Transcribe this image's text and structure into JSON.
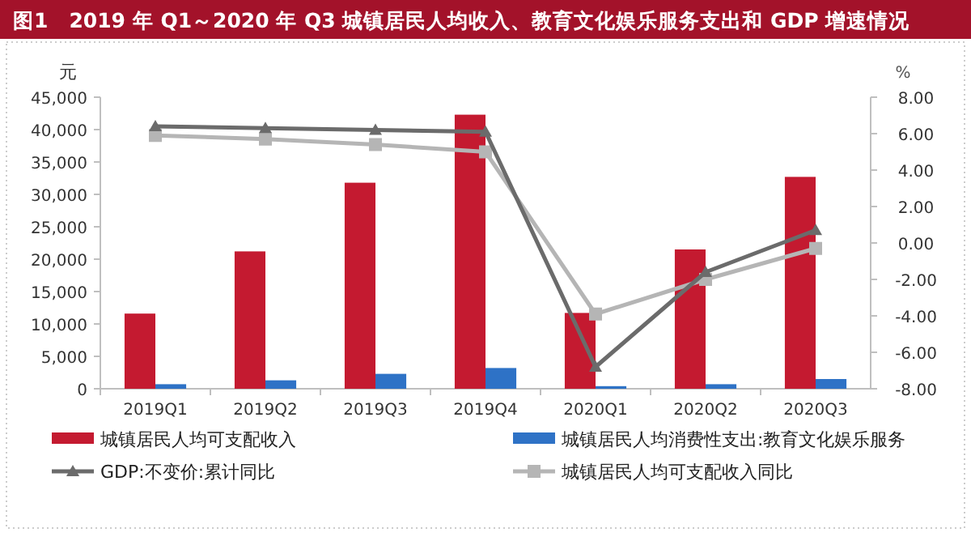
{
  "chart_data": {
    "type": "bar",
    "title": "图1　2019 年 Q1～2020 年 Q3 城镇居民人均收入、教育文化娱乐服务支出和 GDP 增速情况",
    "ylabel": "元",
    "y2label": "%",
    "categories": [
      "2019Q1",
      "2019Q2",
      "2019Q3",
      "2019Q4",
      "2020Q1",
      "2020Q2",
      "2020Q3"
    ],
    "series": [
      {
        "name": "城镇居民人均可支配收入",
        "color": "#c41a30",
        "values": [
          11600,
          21200,
          31800,
          42300,
          11700,
          21500,
          32700
        ]
      },
      {
        "name": "城镇居民人均消费性支出:教育文化娱乐服务",
        "color": "#2e72c6",
        "values": [
          700,
          1300,
          2300,
          3200,
          400,
          700,
          1500
        ]
      },
      {
        "name": "GDP:不变价:累计同比",
        "type": "line",
        "axis": "y2",
        "marker": "triangle",
        "color": "#6b6b6b",
        "values": [
          6.4,
          6.3,
          6.2,
          6.1,
          -6.8,
          -1.6,
          0.7
        ]
      },
      {
        "name": "城镇居民人均可支配收入同比",
        "type": "line",
        "axis": "y2",
        "marker": "square",
        "color": "#b5b5b5",
        "values": [
          5.9,
          5.7,
          5.4,
          5.0,
          -3.9,
          -2.0,
          -0.3
        ]
      }
    ],
    "ylim": [
      0,
      45000
    ],
    "yticks": [
      {
        "value": 0,
        "label": "0"
      },
      {
        "value": 5000,
        "label": "5,000"
      },
      {
        "value": 10000,
        "label": "10,000"
      },
      {
        "value": 15000,
        "label": "15,000"
      },
      {
        "value": 20000,
        "label": "20,000"
      },
      {
        "value": 25000,
        "label": "25,000"
      },
      {
        "value": 30000,
        "label": "30,000"
      },
      {
        "value": 35000,
        "label": "35,000"
      },
      {
        "value": 40000,
        "label": "40,000"
      },
      {
        "value": 45000,
        "label": "45,000"
      }
    ],
    "y2lim": [
      -8,
      8
    ],
    "y2ticks": [
      {
        "value": -8,
        "label": "-8.00"
      },
      {
        "value": -6,
        "label": "-6.00"
      },
      {
        "value": -4,
        "label": "-4.00"
      },
      {
        "value": -2,
        "label": "-2.00"
      },
      {
        "value": 0,
        "label": "0.00"
      },
      {
        "value": 2,
        "label": "2.00"
      },
      {
        "value": 4,
        "label": "4.00"
      },
      {
        "value": 6,
        "label": "6.00"
      },
      {
        "value": 8,
        "label": "8.00"
      }
    ],
    "legend": "bottom"
  }
}
